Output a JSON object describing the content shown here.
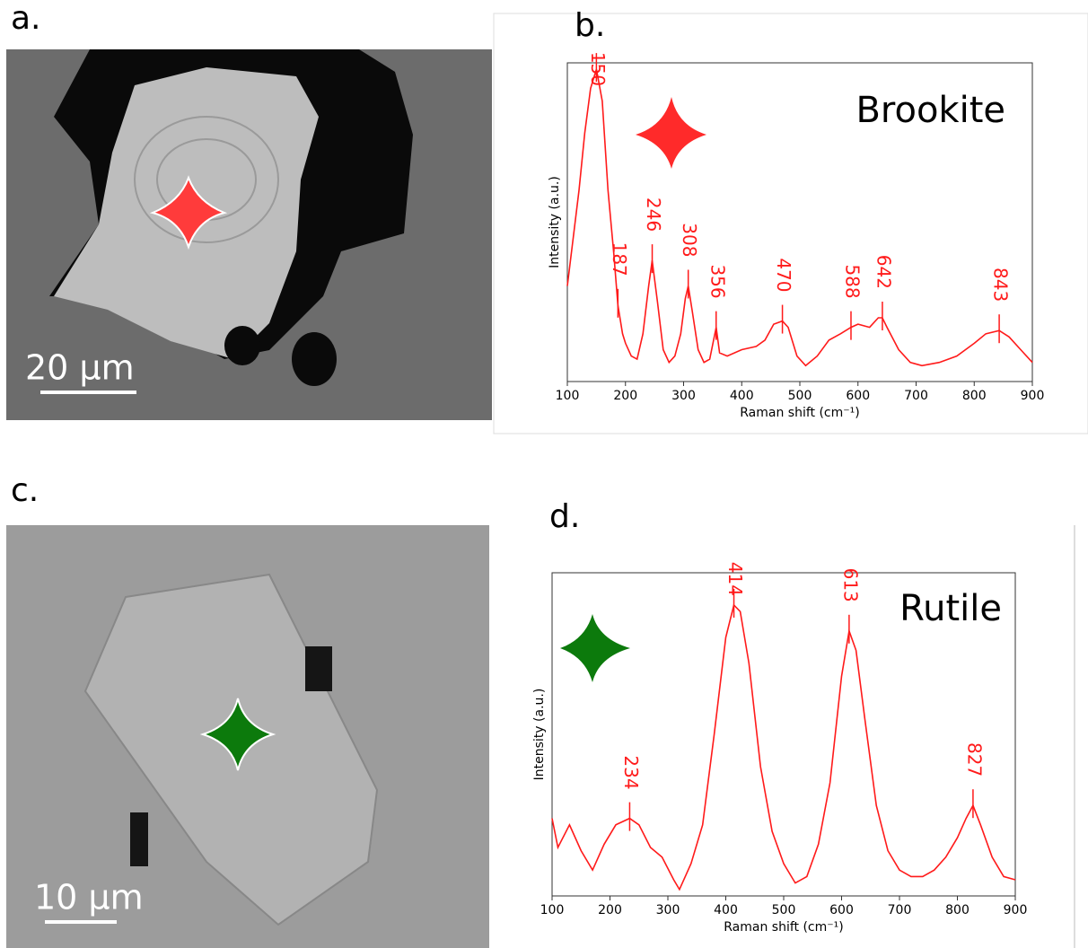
{
  "panels": [
    {
      "label": "a.",
      "scale_bar": "20 µm"
    },
    {
      "label": "c.",
      "scale_bar": "10 µm"
    }
  ],
  "chart_data": [
    {
      "type": "line",
      "title": "b.",
      "annotation": "Brookite",
      "x_label": "Raman shift (cm⁻¹)",
      "y_label": "Intensity (a.u.)",
      "xlim": [
        100,
        900
      ],
      "xticks": [
        100,
        200,
        300,
        400,
        500,
        600,
        700,
        800,
        900
      ],
      "ylim": [
        0,
        100
      ],
      "x": [
        100,
        110,
        120,
        130,
        140,
        150,
        160,
        170,
        180,
        187,
        195,
        200,
        210,
        220,
        230,
        240,
        246,
        255,
        265,
        275,
        285,
        295,
        303,
        308,
        315,
        325,
        335,
        345,
        356,
        362,
        375,
        400,
        425,
        440,
        455,
        470,
        480,
        495,
        510,
        530,
        550,
        570,
        588,
        600,
        620,
        635,
        642,
        650,
        670,
        690,
        710,
        740,
        770,
        800,
        820,
        843,
        860,
        880,
        900
      ],
      "series": [
        {
          "color": "#ff1a1a",
          "values": [
            30,
            45,
            60,
            78,
            92,
            98,
            88,
            60,
            40,
            24,
            15,
            12,
            8,
            7,
            15,
            30,
            38,
            25,
            10,
            6,
            8,
            15,
            26,
            30,
            22,
            10,
            6,
            7,
            17,
            9,
            8,
            10,
            11,
            13,
            18,
            19,
            17,
            8,
            5,
            8,
            13,
            15,
            17,
            18,
            17,
            20,
            20,
            17,
            10,
            6,
            5,
            6,
            8,
            12,
            15,
            16,
            14,
            10,
            6
          ]
        }
      ],
      "peaks": [
        150,
        187,
        246,
        308,
        356,
        470,
        588,
        642,
        843
      ]
    },
    {
      "type": "line",
      "title": "d.",
      "annotation": "Rutile",
      "x_label": "Raman shift (cm⁻¹)",
      "y_label": "Intensity (a.u.)",
      "xlim": [
        100,
        900
      ],
      "xticks": [
        100,
        200,
        300,
        400,
        500,
        600,
        700,
        800,
        900
      ],
      "ylim": [
        0,
        100
      ],
      "x": [
        100,
        110,
        130,
        150,
        170,
        190,
        210,
        234,
        250,
        270,
        290,
        310,
        320,
        340,
        360,
        380,
        400,
        414,
        425,
        440,
        460,
        480,
        500,
        520,
        540,
        560,
        580,
        600,
        613,
        625,
        640,
        660,
        680,
        700,
        720,
        740,
        760,
        780,
        800,
        815,
        827,
        840,
        860,
        880,
        900
      ],
      "series": [
        {
          "color": "#ff1a1a",
          "values": [
            24,
            15,
            22,
            14,
            8,
            16,
            22,
            24,
            22,
            15,
            12,
            5,
            2,
            10,
            22,
            50,
            80,
            90,
            88,
            72,
            40,
            20,
            10,
            4,
            6,
            16,
            35,
            68,
            82,
            76,
            55,
            28,
            14,
            8,
            6,
            6,
            8,
            12,
            18,
            24,
            28,
            22,
            12,
            6,
            5
          ]
        }
      ],
      "peaks": [
        234,
        414,
        613,
        827
      ]
    }
  ]
}
